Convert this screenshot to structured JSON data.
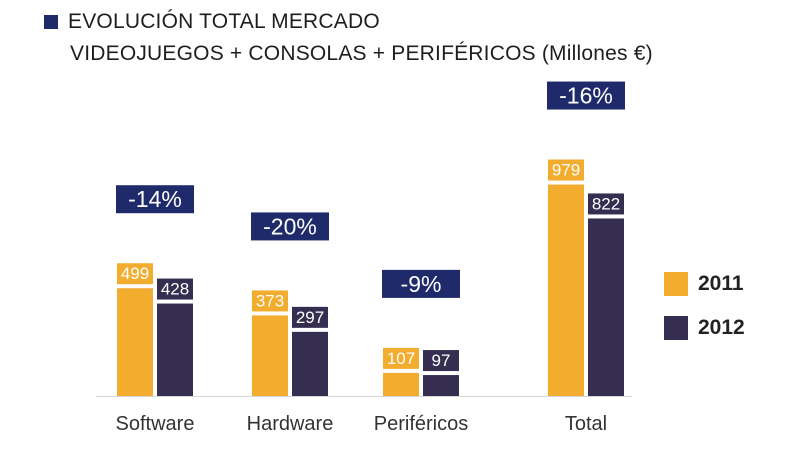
{
  "colors": {
    "c2011": "#f2ad2e",
    "c2012": "#352e51",
    "badge": "#1f2a6b",
    "title_square": "#1f2a6b"
  },
  "chart_data": {
    "type": "bar",
    "title": "EVOLUCIÓN TOTAL MERCADO",
    "subtitle": "VIDEOJUEGOS + CONSOLAS + PERIFÉRICOS (Millones €)",
    "categories": [
      "Software",
      "Hardware",
      "Periféricos",
      "Total"
    ],
    "series": [
      {
        "name": "2011",
        "values": [
          499,
          373,
          107,
          979
        ]
      },
      {
        "name": "2012",
        "values": [
          428,
          297,
          97,
          822
        ]
      }
    ],
    "value_labels": [
      [
        "499",
        "373",
        "107",
        "979"
      ],
      [
        "428",
        "297",
        "97",
        "822"
      ]
    ],
    "change_labels": [
      "-14%",
      "-20%",
      "-9%",
      "-16%"
    ],
    "ylim": [
      0,
      1000
    ],
    "legend_position": "right",
    "grid": false
  }
}
